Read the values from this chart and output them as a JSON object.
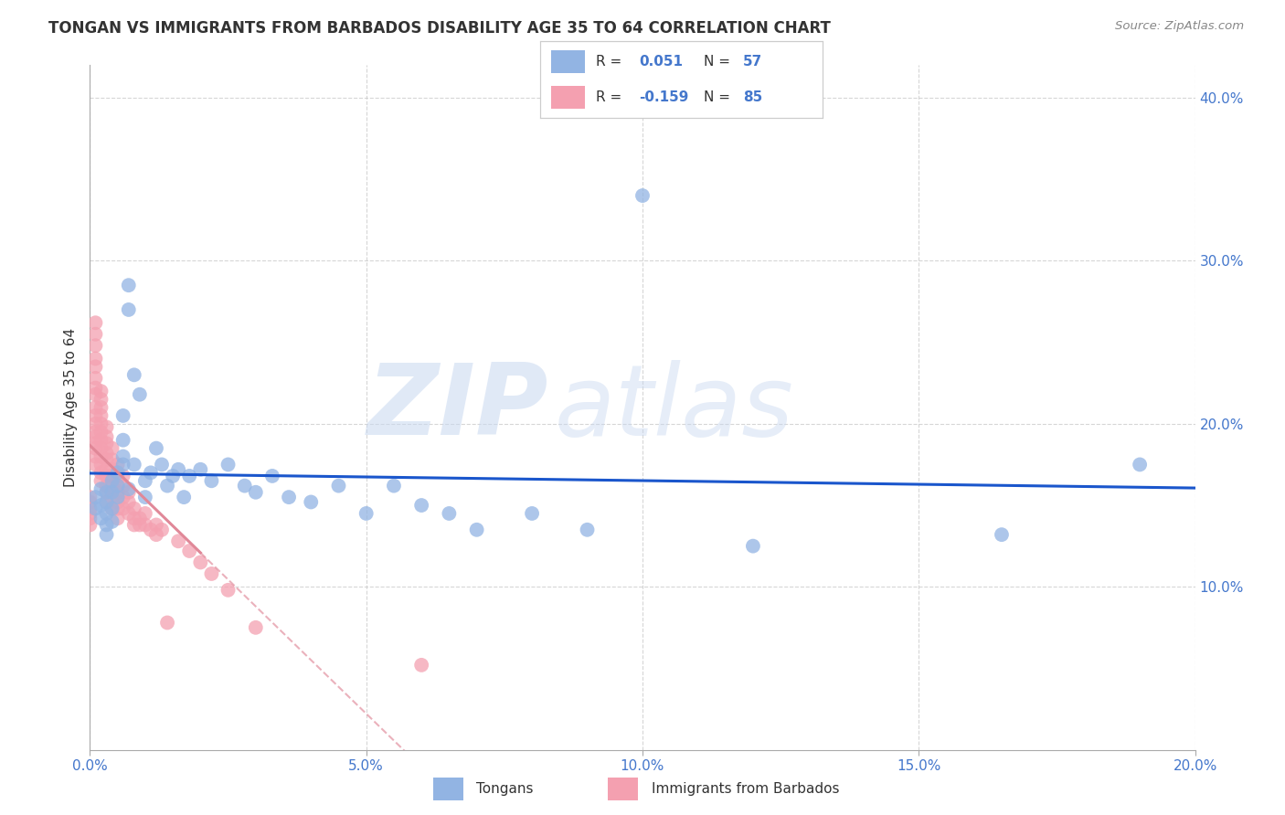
{
  "title": "TONGAN VS IMMIGRANTS FROM BARBADOS DISABILITY AGE 35 TO 64 CORRELATION CHART",
  "source": "Source: ZipAtlas.com",
  "xlabel_label": "Tongans",
  "xlabel_label2": "Immigrants from Barbados",
  "ylabel": "Disability Age 35 to 64",
  "xlim": [
    0.0,
    0.2
  ],
  "ylim": [
    0.0,
    0.42
  ],
  "xticks": [
    0.0,
    0.05,
    0.1,
    0.15,
    0.2
  ],
  "yticks": [
    0.1,
    0.2,
    0.3,
    0.4
  ],
  "blue_R": 0.051,
  "blue_N": 57,
  "pink_R": -0.159,
  "pink_N": 85,
  "blue_color": "#92b4e3",
  "pink_color": "#f4a0b0",
  "line_blue": "#1a56cc",
  "line_pink": "#e08898",
  "background": "#ffffff",
  "grid_color": "#cccccc",
  "watermark_zip": "ZIP",
  "watermark_atlas": "atlas",
  "blue_x": [
    0.001,
    0.001,
    0.002,
    0.002,
    0.002,
    0.003,
    0.003,
    0.003,
    0.003,
    0.003,
    0.004,
    0.004,
    0.004,
    0.004,
    0.005,
    0.005,
    0.005,
    0.006,
    0.006,
    0.006,
    0.006,
    0.007,
    0.007,
    0.007,
    0.008,
    0.008,
    0.009,
    0.01,
    0.01,
    0.011,
    0.012,
    0.013,
    0.014,
    0.015,
    0.016,
    0.017,
    0.018,
    0.02,
    0.022,
    0.025,
    0.028,
    0.03,
    0.033,
    0.036,
    0.04,
    0.045,
    0.05,
    0.055,
    0.06,
    0.065,
    0.07,
    0.08,
    0.09,
    0.1,
    0.12,
    0.165,
    0.19
  ],
  "blue_y": [
    0.155,
    0.148,
    0.16,
    0.15,
    0.142,
    0.158,
    0.152,
    0.145,
    0.138,
    0.132,
    0.165,
    0.158,
    0.148,
    0.14,
    0.17,
    0.162,
    0.155,
    0.175,
    0.205,
    0.19,
    0.18,
    0.285,
    0.27,
    0.16,
    0.23,
    0.175,
    0.218,
    0.165,
    0.155,
    0.17,
    0.185,
    0.175,
    0.162,
    0.168,
    0.172,
    0.155,
    0.168,
    0.172,
    0.165,
    0.175,
    0.162,
    0.158,
    0.168,
    0.155,
    0.152,
    0.162,
    0.145,
    0.162,
    0.15,
    0.145,
    0.135,
    0.145,
    0.135,
    0.34,
    0.125,
    0.132,
    0.175
  ],
  "pink_x": [
    0.0,
    0.0,
    0.0,
    0.0,
    0.0,
    0.0,
    0.001,
    0.001,
    0.001,
    0.001,
    0.001,
    0.001,
    0.001,
    0.001,
    0.001,
    0.001,
    0.001,
    0.001,
    0.001,
    0.001,
    0.001,
    0.001,
    0.001,
    0.002,
    0.002,
    0.002,
    0.002,
    0.002,
    0.002,
    0.002,
    0.002,
    0.002,
    0.002,
    0.002,
    0.002,
    0.003,
    0.003,
    0.003,
    0.003,
    0.003,
    0.003,
    0.003,
    0.003,
    0.003,
    0.003,
    0.004,
    0.004,
    0.004,
    0.004,
    0.004,
    0.004,
    0.004,
    0.005,
    0.005,
    0.005,
    0.005,
    0.005,
    0.005,
    0.005,
    0.006,
    0.006,
    0.006,
    0.006,
    0.007,
    0.007,
    0.007,
    0.008,
    0.008,
    0.008,
    0.009,
    0.009,
    0.01,
    0.01,
    0.011,
    0.012,
    0.012,
    0.013,
    0.014,
    0.016,
    0.018,
    0.02,
    0.022,
    0.025,
    0.03,
    0.06
  ],
  "pink_y": [
    0.155,
    0.152,
    0.148,
    0.145,
    0.142,
    0.138,
    0.262,
    0.255,
    0.248,
    0.24,
    0.235,
    0.228,
    0.222,
    0.218,
    0.21,
    0.205,
    0.2,
    0.195,
    0.192,
    0.188,
    0.185,
    0.18,
    0.175,
    0.22,
    0.215,
    0.21,
    0.205,
    0.2,
    0.195,
    0.19,
    0.185,
    0.18,
    0.175,
    0.17,
    0.165,
    0.198,
    0.192,
    0.188,
    0.182,
    0.178,
    0.172,
    0.168,
    0.162,
    0.158,
    0.152,
    0.185,
    0.178,
    0.172,
    0.168,
    0.162,
    0.155,
    0.148,
    0.175,
    0.168,
    0.162,
    0.158,
    0.152,
    0.148,
    0.142,
    0.168,
    0.162,
    0.155,
    0.148,
    0.158,
    0.152,
    0.145,
    0.148,
    0.142,
    0.138,
    0.142,
    0.138,
    0.145,
    0.138,
    0.135,
    0.138,
    0.132,
    0.135,
    0.078,
    0.128,
    0.122,
    0.115,
    0.108,
    0.098,
    0.075,
    0.052
  ]
}
